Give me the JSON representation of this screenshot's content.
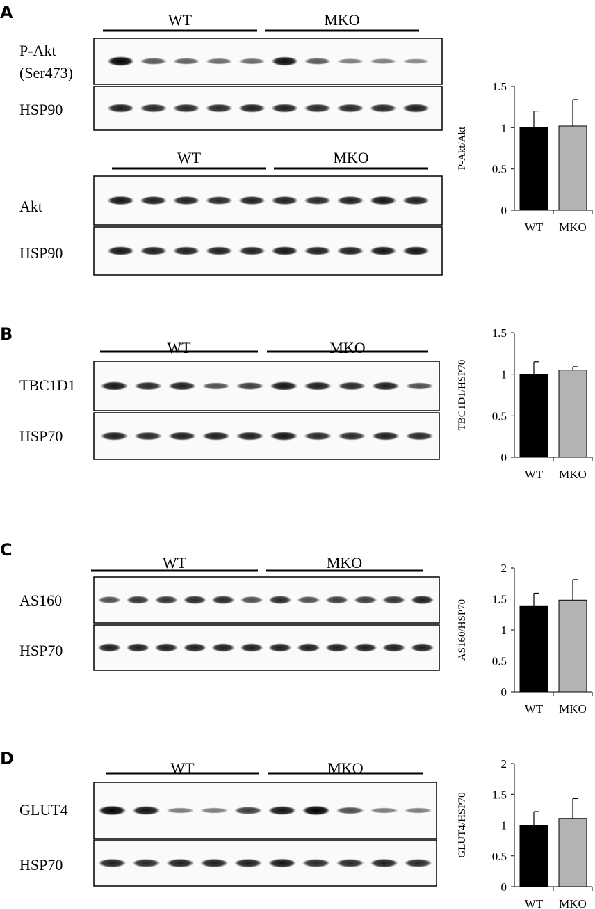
{
  "panels": [
    {
      "letter": "A",
      "blots": [
        {
          "groups": [
            {
              "label": "WT"
            },
            {
              "label": "MKO"
            }
          ],
          "rows": [
            {
              "label": [
                "P-Akt",
                "(Ser473)"
              ],
              "intensities": [
                1.0,
                0.55,
                0.5,
                0.45,
                0.45,
                0.95,
                0.55,
                0.35,
                0.35,
                0.3
              ]
            },
            {
              "label": [
                "HSP90"
              ],
              "intensities": [
                0.85,
                0.8,
                0.8,
                0.8,
                0.85,
                0.85,
                0.8,
                0.8,
                0.8,
                0.85
              ]
            }
          ]
        },
        {
          "groups": [
            {
              "label": "WT"
            },
            {
              "label": "MKO"
            }
          ],
          "rows": [
            {
              "label": [
                "Akt"
              ],
              "intensities": [
                0.9,
                0.85,
                0.85,
                0.8,
                0.85,
                0.85,
                0.8,
                0.85,
                0.9,
                0.85
              ]
            },
            {
              "label": [
                "HSP90"
              ],
              "intensities": [
                0.9,
                0.85,
                0.85,
                0.85,
                0.85,
                0.9,
                0.85,
                0.85,
                0.9,
                0.9
              ]
            }
          ]
        }
      ]
    },
    {
      "letter": "B",
      "blots": [
        {
          "groups": [
            {
              "label": "WT"
            },
            {
              "label": "MKO"
            }
          ],
          "rows": [
            {
              "label": [
                "TBC1D1"
              ],
              "intensities": [
                0.9,
                0.8,
                0.85,
                0.6,
                0.7,
                0.9,
                0.85,
                0.8,
                0.85,
                0.6
              ]
            },
            {
              "label": [
                "HSP70"
              ],
              "intensities": [
                0.85,
                0.8,
                0.85,
                0.85,
                0.85,
                0.9,
                0.8,
                0.8,
                0.85,
                0.8
              ]
            }
          ]
        }
      ]
    },
    {
      "letter": "C",
      "blots": [
        {
          "groups": [
            {
              "label": "WT"
            },
            {
              "label": "MKO"
            }
          ],
          "rows": [
            {
              "label": [
                "AS160"
              ],
              "intensities": [
                0.6,
                0.75,
                0.75,
                0.8,
                0.8,
                0.6,
                0.8,
                0.6,
                0.7,
                0.7,
                0.75,
                0.85
              ]
            },
            {
              "label": [
                "HSP70"
              ],
              "intensities": [
                0.85,
                0.85,
                0.85,
                0.85,
                0.85,
                0.85,
                0.85,
                0.85,
                0.85,
                0.85,
                0.85,
                0.85
              ]
            }
          ]
        }
      ]
    },
    {
      "letter": "D",
      "blots": [
        {
          "groups": [
            {
              "label": "WT"
            },
            {
              "label": "MKO"
            }
          ],
          "rows": [
            {
              "label": [
                "GLUT4"
              ],
              "intensities": [
                1.0,
                0.9,
                0.35,
                0.35,
                0.7,
                0.9,
                1.0,
                0.6,
                0.35,
                0.35
              ]
            },
            {
              "label": [
                "HSP70"
              ],
              "intensities": [
                0.85,
                0.8,
                0.85,
                0.85,
                0.85,
                0.9,
                0.8,
                0.8,
                0.85,
                0.8
              ]
            }
          ]
        }
      ]
    }
  ],
  "chart_data": [
    {
      "type": "bar",
      "categories": [
        "WT",
        "MKO"
      ],
      "values": [
        1.0,
        1.02
      ],
      "errors": [
        0.2,
        0.32
      ],
      "ylabel": "P-Akt/Akt",
      "ylim": [
        0,
        1.5
      ],
      "yticks": [
        "0",
        "0.5",
        "1",
        "1.5"
      ],
      "colors": [
        "#000000",
        "#b3b3b3"
      ]
    },
    {
      "type": "bar",
      "categories": [
        "WT",
        "MKO"
      ],
      "values": [
        1.0,
        1.05
      ],
      "errors": [
        0.15,
        0.04
      ],
      "ylabel": "TBC1D1/HSP70",
      "ylim": [
        0,
        1.5
      ],
      "yticks": [
        "0",
        "0.5",
        "1",
        "1.5"
      ],
      "colors": [
        "#000000",
        "#b3b3b3"
      ]
    },
    {
      "type": "bar",
      "categories": [
        "WT",
        "MKO"
      ],
      "values": [
        1.39,
        1.48
      ],
      "errors": [
        0.2,
        0.33
      ],
      "ylabel": "AS160/HSP70",
      "ylim": [
        0,
        2
      ],
      "yticks": [
        "0",
        "0.5",
        "1",
        "1.5",
        "2"
      ],
      "colors": [
        "#000000",
        "#b3b3b3"
      ]
    },
    {
      "type": "bar",
      "categories": [
        "WT",
        "MKO"
      ],
      "values": [
        1.0,
        1.11
      ],
      "errors": [
        0.22,
        0.32
      ],
      "ylabel": "GLUT4/HSP70",
      "ylim": [
        0,
        2
      ],
      "yticks": [
        "0",
        "0.5",
        "1",
        "1.5",
        "2"
      ],
      "colors": [
        "#000000",
        "#b3b3b3"
      ]
    }
  ]
}
